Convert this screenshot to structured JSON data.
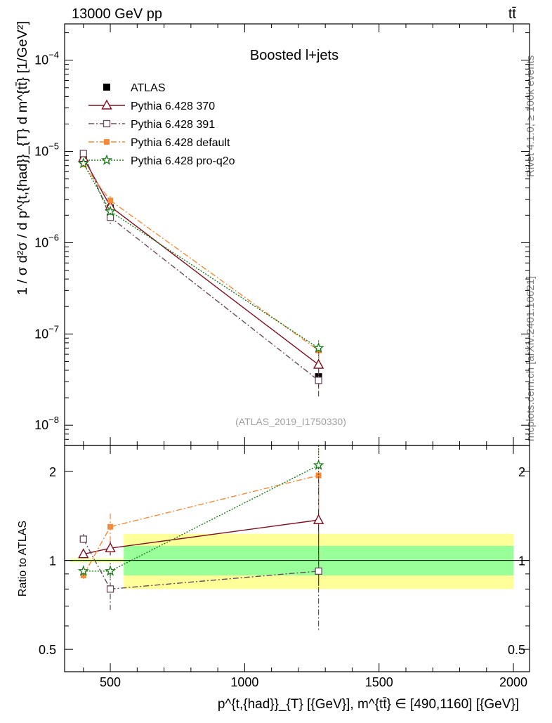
{
  "header": {
    "energy_label": "13000 GeV pp",
    "process_label": "tt̄"
  },
  "side_texts": {
    "rivet": "Rivet 4.1.0, ≥ 100k events",
    "site": "mcplots.cern.ch [arXiv:2401.10621]"
  },
  "chart_data": [
    {
      "type": "line",
      "panel": "main",
      "title": "Boosted l+jets",
      "analysis_label": "(ATLAS_2019_I1750330)",
      "ylabel": "1 / σ d²σ / d p^{t,{had}}_{T} d m^{tt̄} [1/GeV²]",
      "yscale": "log",
      "ylim": [
        6e-09,
        0.00025
      ],
      "xlim": [
        330,
        2060
      ],
      "grid": false,
      "legend_position": "top-left",
      "y_ticks": [
        {
          "value": 1e-08,
          "base": "10",
          "exp": "−8"
        },
        {
          "value": 1e-07,
          "base": "10",
          "exp": "−7"
        },
        {
          "value": 1e-06,
          "base": "10",
          "exp": "−6"
        },
        {
          "value": 1e-05,
          "base": "10",
          "exp": "−5"
        },
        {
          "value": 0.0001,
          "base": "10",
          "exp": "−4"
        }
      ],
      "series": [
        {
          "name": "ATLAS",
          "color": "#000000",
          "x": [
            400,
            500,
            1275
          ],
          "y": [
            8e-06,
            2.4e-06,
            3.4e-08
          ],
          "yerr": [
            5e-07,
            2e-07,
            3e-09
          ]
        },
        {
          "name": "Pythia 6.428 370",
          "color": "#7f0f1f",
          "x": [
            400,
            500,
            1275
          ],
          "y": [
            8.5e-06,
            2.5e-06,
            4.6e-08
          ],
          "yerr": [
            2e-07,
            1.5e-07,
            2e-08
          ]
        },
        {
          "name": "Pythia 6.428 391",
          "color": "#6b4a5a",
          "x": [
            400,
            500,
            1275
          ],
          "y": [
            9.5e-06,
            1.9e-06,
            3.1e-08
          ],
          "yerr": [
            3e-07,
            3e-07,
            1.1e-08
          ]
        },
        {
          "name": "Pythia 6.428 default",
          "color": "#f58a3a",
          "x": [
            400,
            500,
            1275
          ],
          "y": [
            7.2e-06,
            2.9e-06,
            6.6e-08
          ],
          "yerr": [
            3e-07,
            3.5e-07,
            1.5e-08
          ]
        },
        {
          "name": "Pythia 6.428 pro-q2o",
          "color": "#1a7a1a",
          "x": [
            400,
            500,
            1275
          ],
          "y": [
            7.4e-06,
            2.2e-06,
            7e-08
          ],
          "yerr": [
            3e-07,
            2e-07,
            1.5e-08
          ]
        }
      ]
    },
    {
      "type": "line",
      "panel": "ratio",
      "ylabel": "Ratio to ATLAS",
      "xlabel": "p^{t,{had}}_{T} [{GeV}], m^{tt̄} ∈ [490,1160] [{GeV}]",
      "yscale": "log",
      "ylim": [
        0.42,
        2.45
      ],
      "xlim": [
        330,
        2060
      ],
      "x_ticks": [
        500,
        1000,
        1500,
        2000
      ],
      "y_ticks": [
        0.5,
        1,
        2
      ],
      "y_tick_labels": [
        "0.5",
        "1",
        "2"
      ],
      "bands": [
        {
          "x0": 350,
          "x1": 550,
          "y0": 0.985,
          "y1": 1.015,
          "kind": "stat+syst"
        },
        {
          "x0": 350,
          "x1": 550,
          "y0": 0.995,
          "y1": 1.005,
          "kind": "stat"
        },
        {
          "x0": 550,
          "x1": 2000,
          "y0": 0.8,
          "y1": 1.23,
          "kind": "stat+syst"
        },
        {
          "x0": 550,
          "x1": 2000,
          "y0": 0.89,
          "y1": 1.12,
          "kind": "stat"
        }
      ],
      "series": [
        {
          "name": "Pythia 6.428 370",
          "color": "#7f0f1f",
          "x": [
            400,
            500,
            1275
          ],
          "y": [
            1.05,
            1.1,
            1.37
          ],
          "yerr": [
            0.03,
            0.06,
            0.55
          ]
        },
        {
          "name": "Pythia 6.428 391",
          "color": "#6b4a5a",
          "x": [
            400,
            500,
            1275
          ],
          "y": [
            1.18,
            0.8,
            0.92
          ],
          "yerr": [
            0.05,
            0.12,
            0.34
          ]
        },
        {
          "name": "Pythia 6.428 default",
          "color": "#f58a3a",
          "x": [
            400,
            500,
            1275
          ],
          "y": [
            0.89,
            1.3,
            1.94
          ],
          "yerr": [
            0.04,
            0.14,
            0.45
          ]
        },
        {
          "name": "Pythia 6.428 pro-q2o",
          "color": "#1a7a1a",
          "x": [
            400,
            500,
            1275
          ],
          "y": [
            0.92,
            0.92,
            2.1
          ],
          "yerr": [
            0.04,
            0.06,
            0.45
          ]
        }
      ]
    }
  ]
}
